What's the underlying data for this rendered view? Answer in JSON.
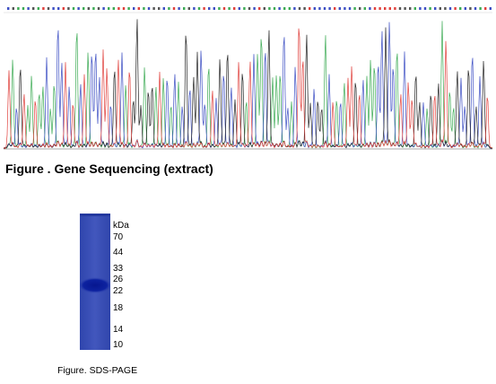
{
  "sequencing_figure": {
    "caption": "Figure . Gene Sequencing (extract)",
    "trace_colors": {
      "A": "#3cab54",
      "C": "#3d4fc4",
      "G": "#222222",
      "T": "#e0403c"
    }
  },
  "sds_figure": {
    "caption": "Figure. SDS-PAGE",
    "unit_label": "kDa",
    "gel_color": "#3a4fb5",
    "band_color": "#0a1d9a",
    "markers": [
      "70",
      "44",
      "33",
      "26",
      "22",
      "18",
      "14",
      "10"
    ]
  }
}
